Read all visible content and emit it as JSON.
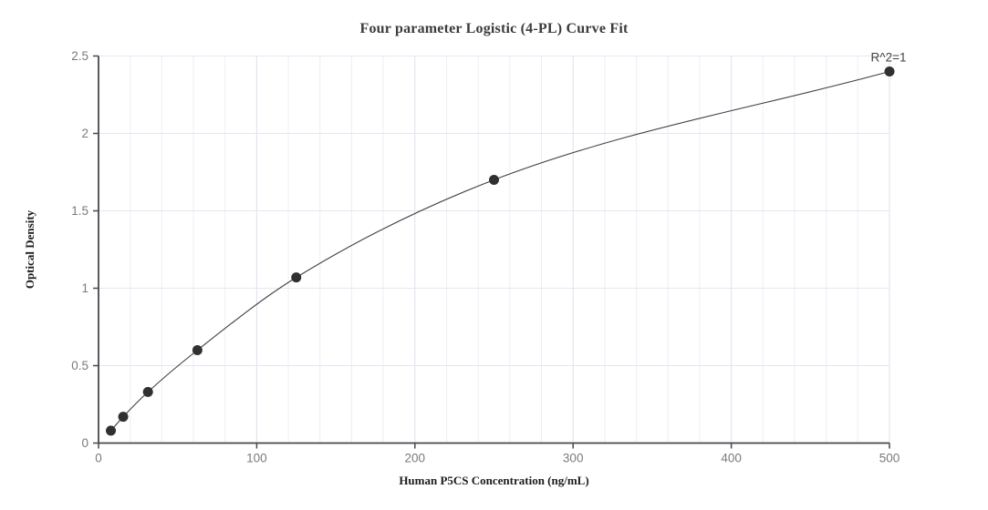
{
  "chart_data": {
    "type": "scatter",
    "title": "Four parameter Logistic (4-PL) Curve Fit",
    "xlabel": "Human P5CS Concentration (ng/mL)",
    "ylabel": "Optical Density",
    "curve_fit": "4-PL smooth curve through all standard points",
    "points": [
      {
        "x": 7.8,
        "y": 0.08
      },
      {
        "x": 15.6,
        "y": 0.17
      },
      {
        "x": 31.25,
        "y": 0.33
      },
      {
        "x": 62.5,
        "y": 0.6
      },
      {
        "x": 125,
        "y": 1.07
      },
      {
        "x": 250,
        "y": 1.7
      },
      {
        "x": 500,
        "y": 2.4
      }
    ],
    "annotation": {
      "text": "R^2=1",
      "at_point": {
        "x": 500,
        "y": 2.4
      }
    },
    "xlim": [
      0,
      500
    ],
    "ylim": [
      0,
      2.5
    ],
    "x_major_ticks": [
      0,
      100,
      200,
      300,
      400,
      500
    ],
    "x_major_tick_labels": [
      "0",
      "100",
      "200",
      "300",
      "400",
      "500"
    ],
    "x_minor_grid_step": 20,
    "y_ticks": [
      0,
      0.5,
      1,
      1.5,
      2,
      2.5
    ],
    "y_tick_labels": [
      "0",
      "0.5",
      "1",
      "1.5",
      "2",
      "2.5"
    ],
    "grid": "on",
    "legend": "none",
    "colors": {
      "point": "#303030",
      "curve": "#3f3f3f",
      "axis": "#47484c",
      "tick_label": "#797a7e",
      "grid_minor": "#eceef6",
      "grid_major": "#dce1ee",
      "grid_horizontal": "#e3e7f2",
      "title_text": "#3b3b3b",
      "annotation_text": "#404040",
      "background": "#ffffff"
    }
  }
}
